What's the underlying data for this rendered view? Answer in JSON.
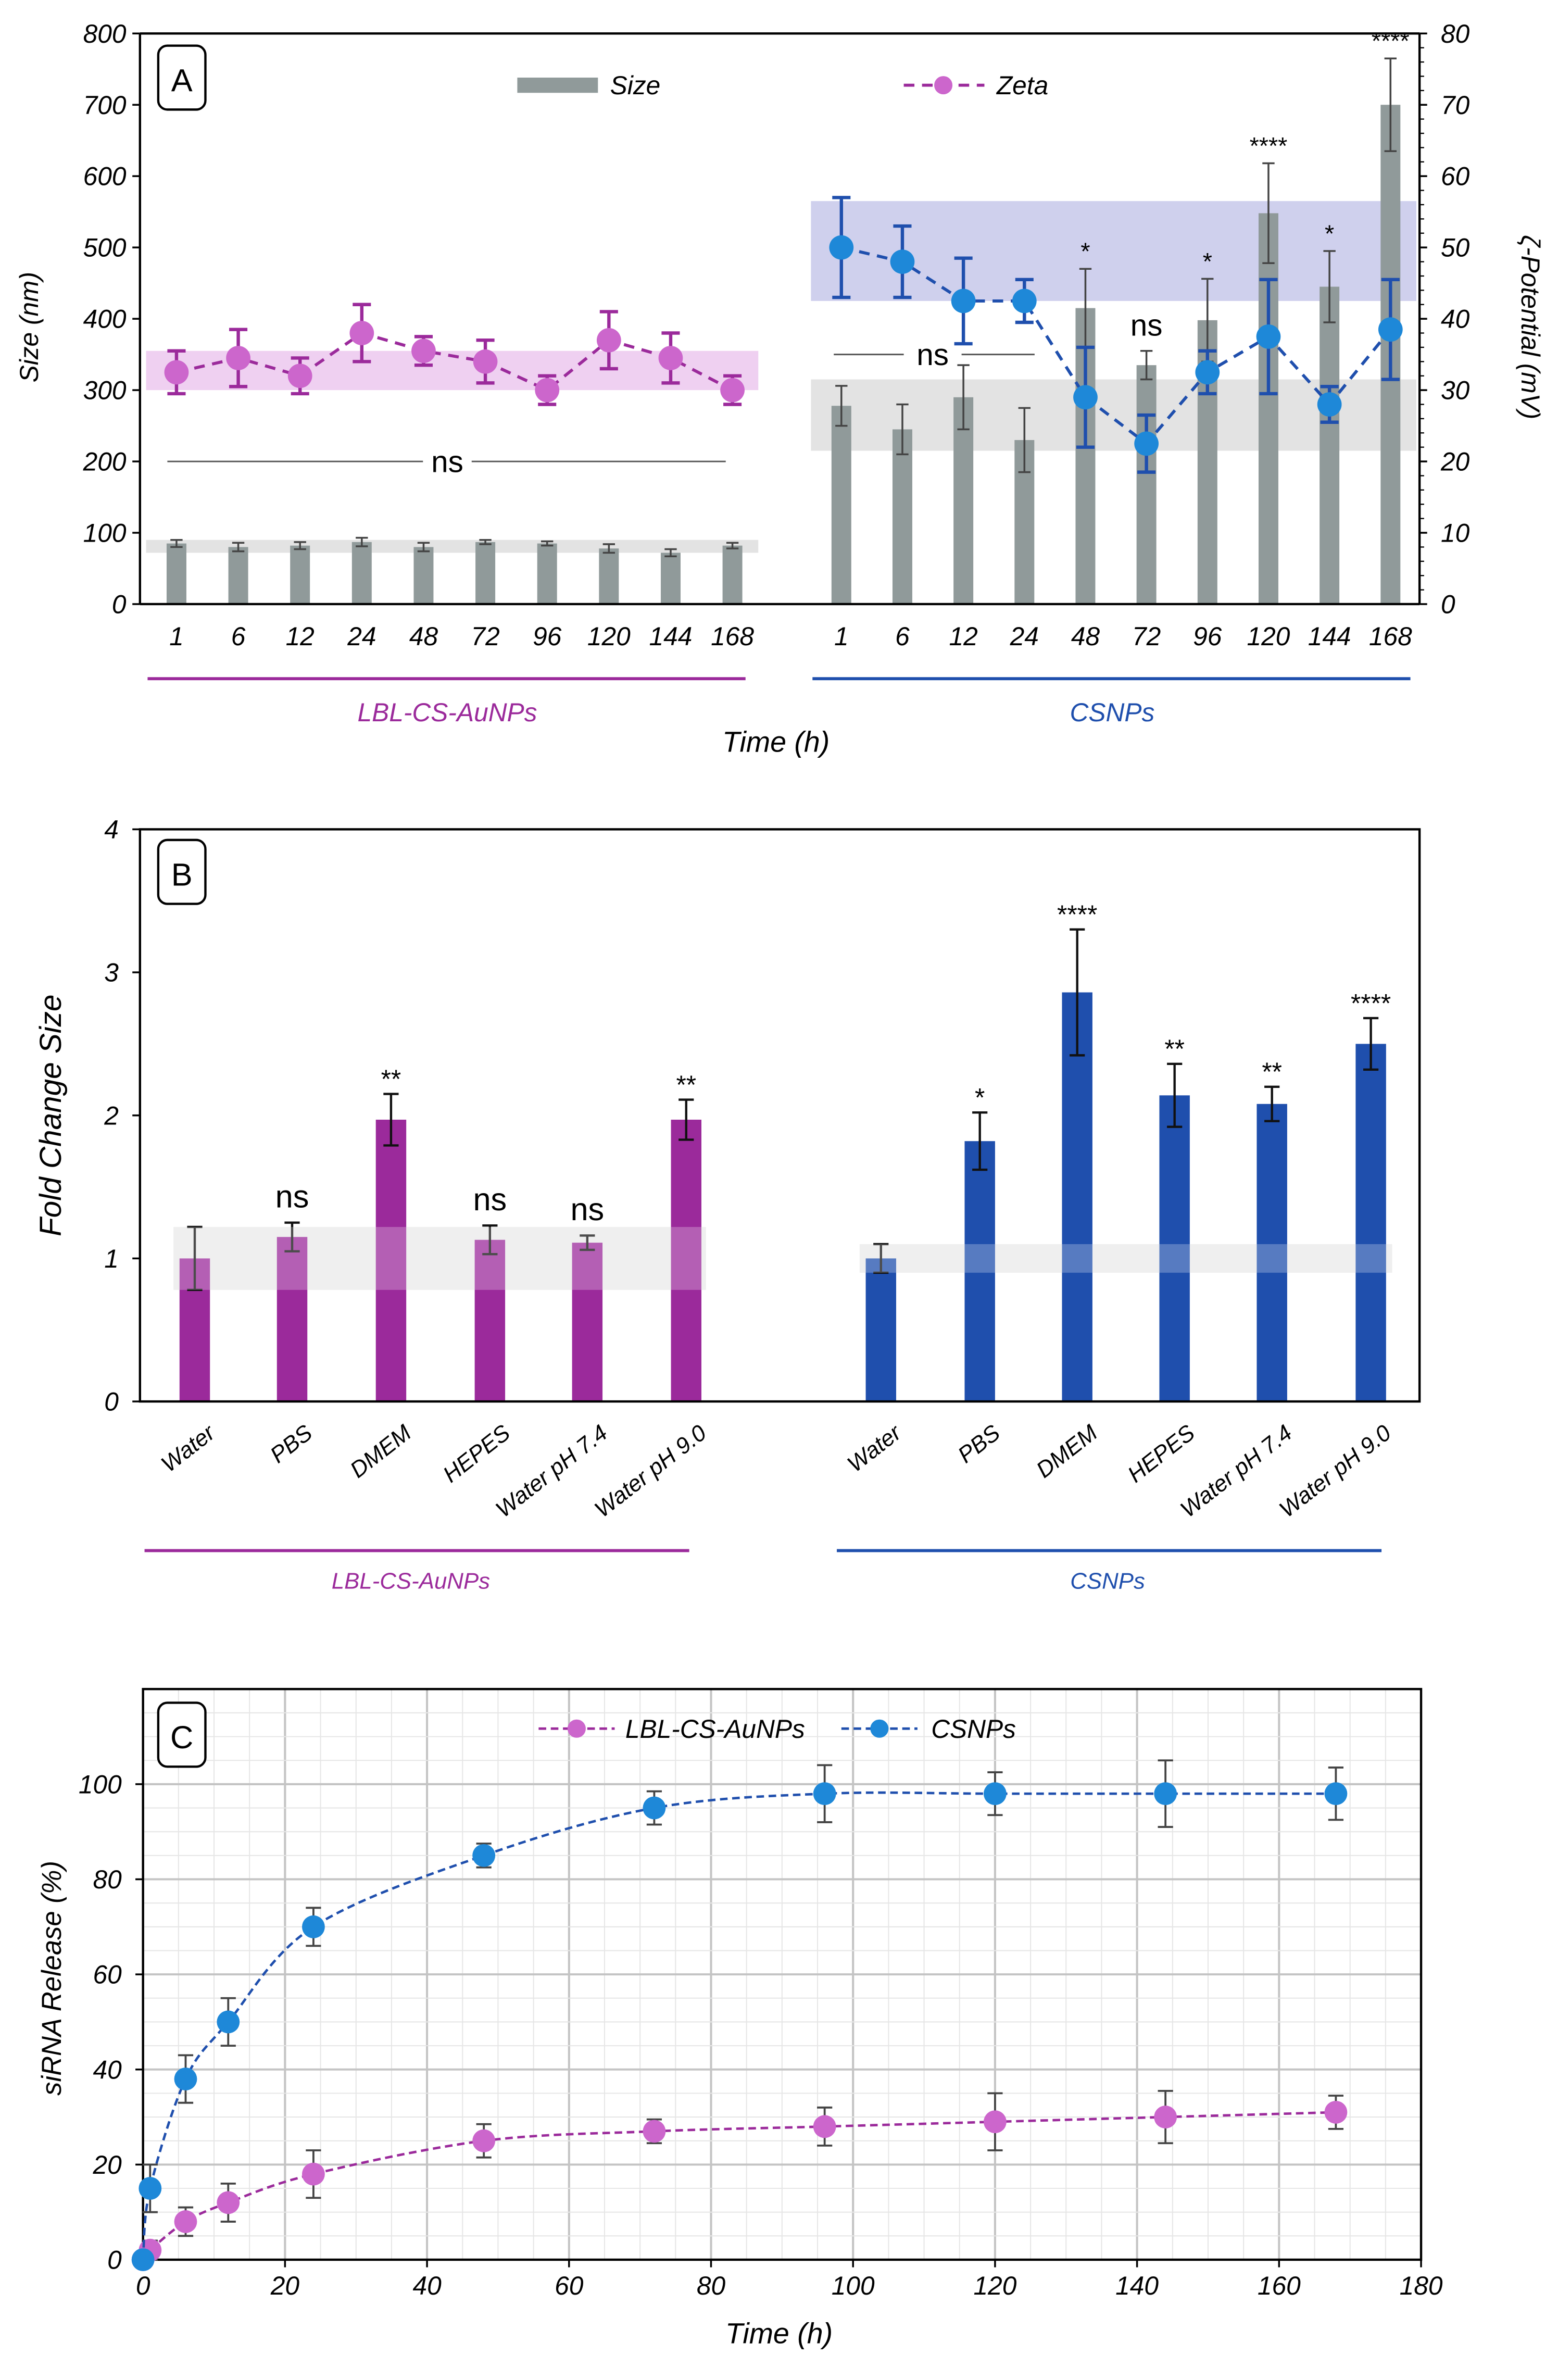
{
  "colors": {
    "lbl": "#9b2a9b",
    "lbl_light": "#cc66cc",
    "csnp": "#1f4fad",
    "csnp_point": "#1e88d8",
    "size_bar": "#909a9a",
    "pink_band": "#ecc8ee",
    "blue_band": "#c7c8ea",
    "grey_band": "#e3e3e3",
    "grid": "#cccccc",
    "axis": "#000000"
  },
  "group_labels": {
    "lbl": "LBL-CS-AuNPs",
    "csnp": "CSNPs"
  },
  "chart_data": [
    {
      "panel": "A",
      "type": "bar",
      "title": "",
      "xlabel": "Time (h)",
      "ylabel": "Size (nm)",
      "ylabel_right": "ζ-Potential (mV)",
      "ylim": [
        0,
        800
      ],
      "yticks": [
        0,
        100,
        200,
        300,
        400,
        500,
        600,
        700,
        800
      ],
      "ylim_right": [
        0,
        80
      ],
      "yticks_right": [
        0,
        10,
        20,
        30,
        40,
        50,
        60,
        70,
        80
      ],
      "legend": {
        "size": "Size",
        "zeta": "Zeta",
        "placement": "top"
      },
      "groups": [
        {
          "name": "LBL-CS-AuNPs",
          "categories": [
            "1",
            "6",
            "12",
            "24",
            "48",
            "72",
            "96",
            "120",
            "144",
            "168"
          ],
          "size": [
            85,
            80,
            82,
            87,
            80,
            87,
            85,
            78,
            72,
            82
          ],
          "size_err": [
            5,
            6,
            5,
            6,
            6,
            3,
            3,
            6,
            5,
            4
          ],
          "zeta": [
            32.5,
            34.5,
            32,
            38,
            35.5,
            34,
            30,
            37,
            34.5,
            30
          ],
          "zeta_err": [
            3,
            4,
            2.5,
            4,
            2,
            3,
            2,
            4,
            3.5,
            2
          ],
          "significance": "ns",
          "annotations": [
            "",
            "",
            "",
            "",
            "",
            "",
            "",
            "",
            "",
            ""
          ]
        },
        {
          "name": "CSNPs",
          "categories": [
            "1",
            "6",
            "12",
            "24",
            "48",
            "72",
            "96",
            "120",
            "144",
            "168"
          ],
          "size": [
            278,
            245,
            290,
            230,
            415,
            335,
            398,
            548,
            445,
            700
          ],
          "size_err": [
            28,
            35,
            45,
            45,
            55,
            20,
            58,
            70,
            50,
            65
          ],
          "zeta": [
            50,
            48,
            42.5,
            42.5,
            29,
            22.5,
            32.5,
            37.5,
            28,
            38.5
          ],
          "zeta_err": [
            7,
            5,
            6,
            3,
            7,
            4,
            3,
            8,
            2.5,
            7
          ],
          "significance": "ns",
          "annotations": [
            "",
            "",
            "",
            "",
            "*",
            "ns",
            "*",
            "****",
            "*",
            "****"
          ]
        }
      ]
    },
    {
      "panel": "B",
      "type": "bar",
      "title": "",
      "ylabel": "Fold Change Size",
      "ylim": [
        0,
        4
      ],
      "yticks": [
        0,
        1,
        2,
        3,
        4
      ],
      "groups": [
        {
          "name": "LBL-CS-AuNPs",
          "categories": [
            "Water",
            "PBS",
            "DMEM",
            "HEPES",
            "Water pH 7.4",
            "Water pH 9.0"
          ],
          "values": [
            1.0,
            1.15,
            1.97,
            1.13,
            1.11,
            1.97
          ],
          "errors": [
            0.22,
            0.1,
            0.18,
            0.1,
            0.05,
            0.14
          ],
          "annotations": [
            "",
            "ns",
            "**",
            "ns",
            "ns",
            "**"
          ]
        },
        {
          "name": "CSNPs",
          "categories": [
            "Water",
            "PBS",
            "DMEM",
            "HEPES",
            "Water pH 7.4",
            "Water pH 9.0"
          ],
          "values": [
            1.0,
            1.82,
            2.86,
            2.14,
            2.08,
            2.5
          ],
          "errors": [
            0.1,
            0.2,
            0.44,
            0.22,
            0.12,
            0.18
          ],
          "annotations": [
            "",
            "*",
            "****",
            "**",
            "**",
            "****"
          ]
        }
      ]
    },
    {
      "panel": "C",
      "type": "line",
      "title": "",
      "xlabel": "Time (h)",
      "ylabel": "siRNA Release (%)",
      "xlim": [
        0,
        180
      ],
      "xticks": [
        0,
        20,
        40,
        60,
        80,
        100,
        120,
        140,
        160,
        180
      ],
      "ylim": [
        0,
        120
      ],
      "yticks": [
        0,
        20,
        40,
        60,
        80,
        100
      ],
      "grid": true,
      "legend_placement": "top",
      "series": [
        {
          "name": "LBL-CS-AuNPs",
          "x": [
            0,
            1,
            6,
            12,
            24,
            48,
            72,
            96,
            120,
            144,
            168
          ],
          "y": [
            0,
            2,
            8,
            12,
            18,
            25,
            27,
            28,
            29,
            30,
            31
          ],
          "err": [
            0,
            2,
            3,
            4,
            5,
            3.5,
            2.5,
            4,
            6,
            5.5,
            3.5
          ]
        },
        {
          "name": "CSNPs",
          "x": [
            0,
            1,
            6,
            12,
            24,
            48,
            72,
            96,
            120,
            144,
            168
          ],
          "y": [
            0,
            15,
            38,
            50,
            70,
            85,
            95,
            98,
            98,
            98,
            98
          ],
          "err": [
            0,
            5,
            5,
            5,
            4,
            2.5,
            3.5,
            6,
            4.5,
            7,
            5.5
          ]
        }
      ]
    }
  ]
}
